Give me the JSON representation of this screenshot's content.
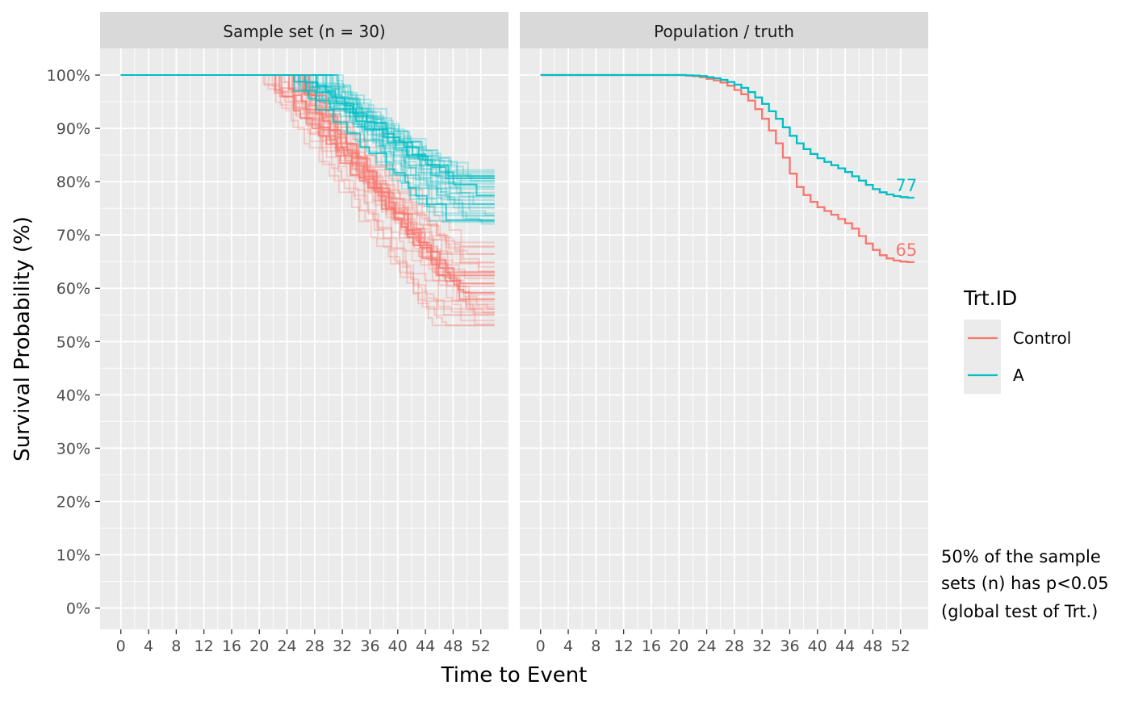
{
  "chart_data": {
    "type": "line",
    "subtype": "kaplan-meier step curves",
    "facets": [
      {
        "label": "Sample set (n = 30)",
        "kind": "samples"
      },
      {
        "label": "Population / truth",
        "kind": "truth"
      }
    ],
    "xlabel": "Time to Event",
    "ylabel": "Survival Probability (%)",
    "xlim": [
      -3,
      56
    ],
    "ylim": [
      -4,
      105
    ],
    "x_ticks": [
      0,
      4,
      8,
      12,
      16,
      20,
      24,
      28,
      32,
      36,
      40,
      44,
      48,
      52
    ],
    "x_tick_labels": [
      "0",
      "4",
      "8",
      "12",
      "16",
      "20",
      "24",
      "28",
      "32",
      "36",
      "40",
      "44",
      "48",
      "52"
    ],
    "y_ticks": [
      0,
      10,
      20,
      30,
      40,
      50,
      60,
      70,
      80,
      90,
      100
    ],
    "y_tick_labels": [
      "0%",
      "10%",
      "20%",
      "30%",
      "40%",
      "50%",
      "60%",
      "70%",
      "80%",
      "90%",
      "100%"
    ],
    "grid": true,
    "legend": {
      "title": "Trt.ID",
      "placement": "right",
      "entries": [
        {
          "name": "Control",
          "color": "#F8766D"
        },
        {
          "name": "A",
          "color": "#00BFC4"
        }
      ]
    },
    "truth_series": [
      {
        "name": "Control",
        "color": "#F8766D",
        "end_label": "65",
        "x": [
          0,
          20,
          21,
          22,
          23,
          24,
          25,
          26,
          27,
          28,
          29,
          30,
          31,
          32,
          33,
          34,
          35,
          36,
          37,
          38,
          39,
          40,
          41,
          42,
          43,
          44,
          45,
          46,
          47,
          48,
          49,
          50,
          51,
          52,
          53,
          54
        ],
        "y": [
          100,
          100,
          99.9,
          99.8,
          99.6,
          99.3,
          99,
          98.6,
          98,
          97.2,
          96.4,
          95.2,
          93.6,
          91.8,
          89.6,
          87.2,
          84.5,
          81.5,
          79,
          77.5,
          76.2,
          75.2,
          74.5,
          73.8,
          73,
          72.2,
          71.2,
          69.8,
          68.4,
          67.2,
          66.2,
          65.6,
          65.2,
          65,
          64.9,
          64.9
        ]
      },
      {
        "name": "A",
        "color": "#00BFC4",
        "end_label": "77",
        "x": [
          0,
          20,
          21,
          22,
          23,
          24,
          25,
          26,
          27,
          28,
          29,
          30,
          31,
          32,
          33,
          34,
          35,
          36,
          37,
          38,
          39,
          40,
          41,
          42,
          43,
          44,
          45,
          46,
          47,
          48,
          49,
          50,
          51,
          52,
          53,
          54
        ],
        "y": [
          100,
          100,
          99.95,
          99.9,
          99.8,
          99.6,
          99.4,
          99.1,
          98.7,
          98.2,
          97.6,
          96.8,
          95.8,
          94.6,
          93.2,
          91.8,
          90.2,
          88.6,
          87.2,
          86.1,
          85.2,
          84.4,
          83.7,
          83.1,
          82.5,
          81.8,
          81,
          80.2,
          79.4,
          78.6,
          78,
          77.6,
          77.3,
          77.1,
          77,
          77
        ]
      }
    ],
    "sample_curves": {
      "n_per_arm": 30,
      "control_color": "#F8766D",
      "a_color": "#00BFC4",
      "x_max": 54,
      "onset_range": [
        20,
        26
      ],
      "a_onset_range": [
        23,
        31
      ],
      "control_end_range": [
        53,
        69
      ],
      "a_end_range": [
        72,
        83
      ]
    },
    "annotation": {
      "lines": [
        "50% of the sample",
        "sets (n) has p<0.05",
        "(global test of Trt.)"
      ]
    }
  }
}
